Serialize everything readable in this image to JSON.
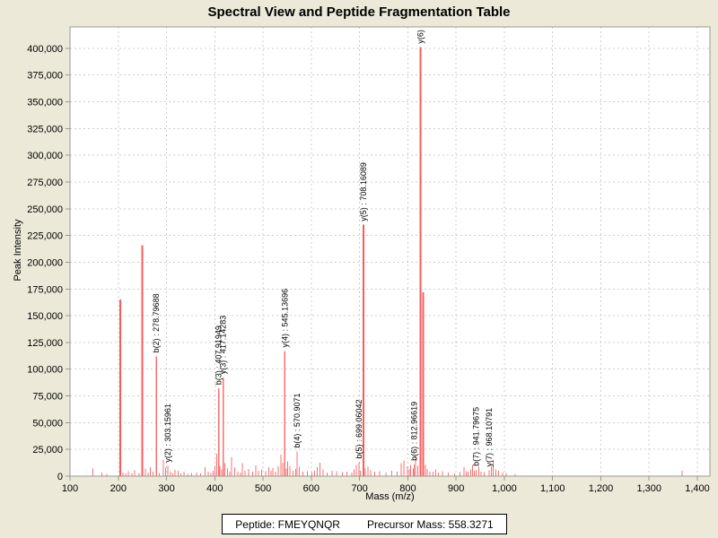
{
  "window": {
    "title": "Spectral View and Peptide Fragmentation Table"
  },
  "chart_data": {
    "type": "bar",
    "title": "Spectral View and Peptide Fragmentation Table",
    "xlabel": "Mass (m/z)",
    "ylabel": "Peak Intensity",
    "xlim": [
      100,
      1426
    ],
    "ylim": [
      0,
      420000
    ],
    "x_ticks": [
      100,
      200,
      300,
      400,
      500,
      600,
      700,
      800,
      900,
      1000,
      1100,
      1200,
      1300,
      1400
    ],
    "y_ticks": [
      0,
      25000,
      50000,
      75000,
      100000,
      125000,
      150000,
      175000,
      200000,
      225000,
      250000,
      275000,
      300000,
      325000,
      350000,
      375000,
      400000
    ],
    "grid": true,
    "legend": "none",
    "annotated_peaks": [
      {
        "label": "b(2) : 278.79688",
        "mz": 278.79688,
        "intensity": 112000
      },
      {
        "label": "y(2) : 303.15961",
        "mz": 303.15961,
        "intensity": 9500
      },
      {
        "label": "b(3) : 407.91949",
        "mz": 407.91949,
        "intensity": 82000
      },
      {
        "label": "y(3) : 417.14283",
        "mz": 417.14283,
        "intensity": 92000
      },
      {
        "label": "y(4) : 545.13696",
        "mz": 545.13696,
        "intensity": 117000
      },
      {
        "label": "b(4) : 570.9071",
        "mz": 570.9071,
        "intensity": 23000
      },
      {
        "label": "b(5) : 699.06042",
        "mz": 699.06042,
        "intensity": 13000
      },
      {
        "label": "y(5) : 708.16089",
        "mz": 708.16089,
        "intensity": 235000
      },
      {
        "label": "b(6) : 812.96619",
        "mz": 812.96619,
        "intensity": 11000
      },
      {
        "label": "y(6) :",
        "mz": 826.5,
        "intensity": 401000
      },
      {
        "label": "b(7) : 941.79675",
        "mz": 941.79675,
        "intensity": 6000
      },
      {
        "label": "y(7) : 968.10791",
        "mz": 968.10791,
        "intensity": 5500
      }
    ],
    "unlabeled_major_peaks": [
      [
        204,
        165000
      ],
      [
        250,
        216000
      ],
      [
        831.5,
        172000
      ]
    ],
    "noise_peaks": [
      [
        147,
        7000
      ],
      [
        166,
        3500
      ],
      [
        176,
        2200
      ],
      [
        210,
        3200
      ],
      [
        215,
        2400
      ],
      [
        221,
        4500
      ],
      [
        228,
        3000
      ],
      [
        234,
        5500
      ],
      [
        243,
        2800
      ],
      [
        256,
        6500
      ],
      [
        262,
        3200
      ],
      [
        266,
        8500
      ],
      [
        272,
        4200
      ],
      [
        285,
        3000
      ],
      [
        293,
        15000
      ],
      [
        298,
        8000
      ],
      [
        308,
        4200
      ],
      [
        313,
        2600
      ],
      [
        318,
        6000
      ],
      [
        324,
        5000
      ],
      [
        330,
        2600
      ],
      [
        336,
        4200
      ],
      [
        345,
        2200
      ],
      [
        352,
        2800
      ],
      [
        362,
        3200
      ],
      [
        371,
        2600
      ],
      [
        380,
        8200
      ],
      [
        386,
        4200
      ],
      [
        392,
        3000
      ],
      [
        397,
        5200
      ],
      [
        400,
        9500
      ],
      [
        404,
        21000
      ],
      [
        411,
        9200
      ],
      [
        414,
        6200
      ],
      [
        421,
        12000
      ],
      [
        426,
        7200
      ],
      [
        431,
        4200
      ],
      [
        435,
        17500
      ],
      [
        441,
        8200
      ],
      [
        448,
        4200
      ],
      [
        453,
        3200
      ],
      [
        457,
        12000
      ],
      [
        463,
        5200
      ],
      [
        470,
        6800
      ],
      [
        478,
        4200
      ],
      [
        485,
        10000
      ],
      [
        491,
        5200
      ],
      [
        497,
        6200
      ],
      [
        505,
        4600
      ],
      [
        512,
        8200
      ],
      [
        517,
        5200
      ],
      [
        520,
        7600
      ],
      [
        526,
        4200
      ],
      [
        531,
        9200
      ],
      [
        537,
        20000
      ],
      [
        541,
        12500
      ],
      [
        548,
        7200
      ],
      [
        551,
        14000
      ],
      [
        556,
        9200
      ],
      [
        562,
        5200
      ],
      [
        568,
        6800
      ],
      [
        575,
        8600
      ],
      [
        583,
        4200
      ],
      [
        592,
        4600
      ],
      [
        601,
        3600
      ],
      [
        607,
        5200
      ],
      [
        612,
        8200
      ],
      [
        618,
        12500
      ],
      [
        624,
        6200
      ],
      [
        633,
        3200
      ],
      [
        643,
        5200
      ],
      [
        652,
        4600
      ],
      [
        664,
        3600
      ],
      [
        674,
        4200
      ],
      [
        684,
        3200
      ],
      [
        689,
        6200
      ],
      [
        693,
        10500
      ],
      [
        702,
        5200
      ],
      [
        712,
        7200
      ],
      [
        717,
        8600
      ],
      [
        723,
        5600
      ],
      [
        731,
        4200
      ],
      [
        742,
        4600
      ],
      [
        755,
        3200
      ],
      [
        767,
        5200
      ],
      [
        778,
        4200
      ],
      [
        786,
        12000
      ],
      [
        792,
        14500
      ],
      [
        799,
        9200
      ],
      [
        803,
        6200
      ],
      [
        806,
        10500
      ],
      [
        811,
        7200
      ],
      [
        816,
        19000
      ],
      [
        821,
        9500
      ],
      [
        836,
        10500
      ],
      [
        840,
        6800
      ],
      [
        846,
        4200
      ],
      [
        852,
        4200
      ],
      [
        858,
        6200
      ],
      [
        863,
        3200
      ],
      [
        872,
        4600
      ],
      [
        884,
        3200
      ],
      [
        897,
        2600
      ],
      [
        908,
        3600
      ],
      [
        916,
        8200
      ],
      [
        921,
        4600
      ],
      [
        925,
        4200
      ],
      [
        930,
        6200
      ],
      [
        934,
        10500
      ],
      [
        938,
        5200
      ],
      [
        947,
        8600
      ],
      [
        952,
        4200
      ],
      [
        958,
        3600
      ],
      [
        973,
        9200
      ],
      [
        977,
        14000
      ],
      [
        982,
        6200
      ],
      [
        988,
        5200
      ],
      [
        996,
        3200
      ],
      [
        1004,
        2800
      ],
      [
        1022,
        2200
      ],
      [
        1368,
        5200
      ]
    ]
  },
  "footer": {
    "peptide": "Peptide: FMEYQNQR",
    "precursor": "Precursor Mass: 558.3271"
  },
  "colors": {
    "background": "#ece9d8",
    "plot_background": "#ffffff",
    "peak": "#f87070",
    "peak_major": "#ff5a5a",
    "grid": "#cccccc",
    "frame": "#9a9a90",
    "text": "#000000"
  }
}
